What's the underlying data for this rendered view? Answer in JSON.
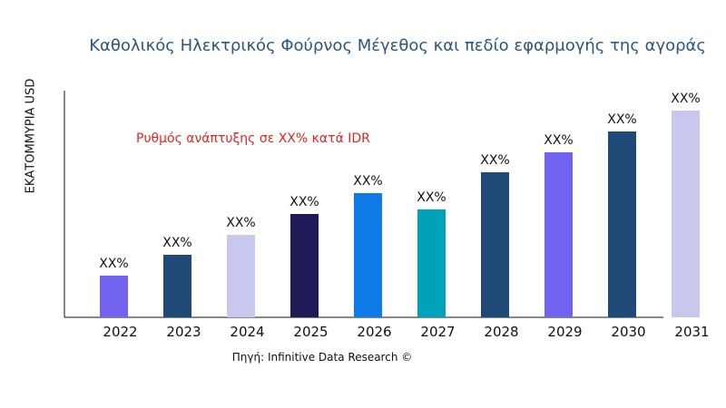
{
  "chart_data": {
    "type": "bar",
    "title": "Καθολικός Ηλεκτρικός Φούρνος Μέγεθος και πεδίο εφαρμογής της αγοράς",
    "xlabel": "",
    "ylabel": "ΕΚΑΤΟΜΜΥΡΙΑ USD",
    "annotation": "Ρυθμός ανάπτυξης σε XX% κατά IDR",
    "source": "Πηγή: Infinitive Data Research ©",
    "categories": [
      "2022",
      "2023",
      "2024",
      "2025",
      "2026",
      "2027",
      "2028",
      "2029",
      "2030",
      "2031"
    ],
    "values": [
      46,
      69,
      91,
      114,
      137,
      119,
      160,
      182,
      205,
      228
    ],
    "ylim": [
      0,
      250
    ],
    "data_labels": [
      "XX%",
      "XX%",
      "XX%",
      "XX%",
      "XX%",
      "XX%",
      "XX%",
      "XX%",
      "XX%",
      "XX%"
    ],
    "colors": [
      "#7262f0",
      "#1f4a78",
      "#c8c8ee",
      "#1e1a55",
      "#0f7be6",
      "#00a2b9",
      "#1f4a78",
      "#7262f0",
      "#1f4a78",
      "#c8c8ee"
    ],
    "grid": false,
    "legend": "none"
  }
}
